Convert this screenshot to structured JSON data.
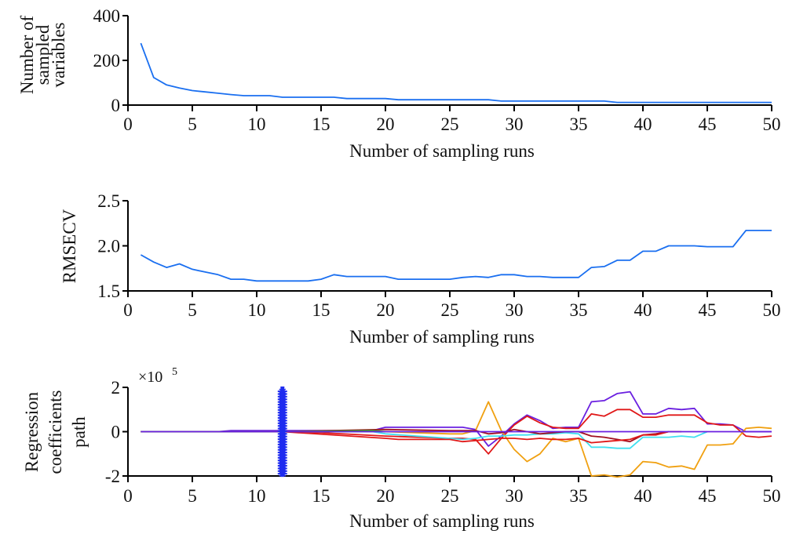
{
  "chart_data": [
    {
      "type": "line",
      "id": "sampled-variables",
      "title": "",
      "xlabel": "Number of sampling runs",
      "ylabel": [
        "Number of",
        "sampled",
        "variables"
      ],
      "xlim": [
        0,
        50
      ],
      "ylim": [
        0,
        400
      ],
      "xticks": [
        0,
        5,
        10,
        15,
        20,
        25,
        30,
        35,
        40,
        45,
        50
      ],
      "yticks": [
        0,
        200,
        400
      ],
      "grid": false,
      "series": [
        {
          "name": "Number of sampled variables",
          "color": "#1a6ff0",
          "x": [
            1,
            2,
            3,
            4,
            5,
            6,
            7,
            8,
            9,
            10,
            11,
            12,
            13,
            14,
            15,
            16,
            17,
            18,
            19,
            20,
            21,
            22,
            23,
            24,
            25,
            26,
            27,
            28,
            29,
            30,
            31,
            32,
            33,
            34,
            35,
            36,
            37,
            38,
            39,
            40,
            41,
            42,
            43,
            44,
            45,
            46,
            47,
            48,
            49,
            50
          ],
          "values": [
            277,
            123,
            90,
            76,
            65,
            59,
            53,
            47,
            42,
            42,
            42,
            35,
            35,
            35,
            35,
            35,
            29,
            29,
            29,
            29,
            24,
            24,
            24,
            24,
            24,
            24,
            24,
            24,
            18,
            18,
            18,
            18,
            18,
            18,
            18,
            18,
            18,
            12,
            12,
            12,
            12,
            12,
            12,
            12,
            12,
            12,
            12,
            12,
            12,
            12
          ]
        }
      ]
    },
    {
      "type": "line",
      "id": "rmsecv",
      "title": "",
      "xlabel": "Number of sampling runs",
      "ylabel": [
        "RMSECV"
      ],
      "xlim": [
        0,
        50
      ],
      "ylim": [
        1.5,
        2.5
      ],
      "xticks": [
        0,
        5,
        10,
        15,
        20,
        25,
        30,
        35,
        40,
        45,
        50
      ],
      "yticks": [
        1.5,
        2.0,
        2.5
      ],
      "ytick_labels": [
        "1.5",
        "2.0",
        "2.5"
      ],
      "grid": false,
      "series": [
        {
          "name": "RMSECV",
          "color": "#1a6ff0",
          "x": [
            1,
            2,
            3,
            4,
            5,
            6,
            7,
            8,
            9,
            10,
            11,
            12,
            13,
            14,
            15,
            16,
            17,
            18,
            19,
            20,
            21,
            22,
            23,
            24,
            25,
            26,
            27,
            28,
            29,
            30,
            31,
            32,
            33,
            34,
            35,
            36,
            37,
            38,
            39,
            40,
            41,
            42,
            43,
            44,
            45,
            46,
            47,
            48,
            49,
            50
          ],
          "values": [
            1.9,
            1.82,
            1.76,
            1.8,
            1.74,
            1.71,
            1.68,
            1.63,
            1.63,
            1.61,
            1.61,
            1.61,
            1.61,
            1.61,
            1.63,
            1.68,
            1.66,
            1.66,
            1.66,
            1.66,
            1.63,
            1.63,
            1.63,
            1.63,
            1.63,
            1.65,
            1.66,
            1.65,
            1.68,
            1.68,
            1.66,
            1.66,
            1.65,
            1.65,
            1.65,
            1.76,
            1.77,
            1.84,
            1.84,
            1.94,
            1.94,
            2.0,
            2.0,
            2.0,
            1.99,
            1.99,
            1.99,
            2.17,
            2.17,
            2.17
          ]
        }
      ]
    },
    {
      "type": "line",
      "id": "regression-coefficients",
      "title": "",
      "xlabel": "Number of sampling runs",
      "ylabel": [
        "Regression",
        "coefficients",
        "path"
      ],
      "multiplier_label": "×10",
      "multiplier_exponent": "5",
      "xlim": [
        0,
        50
      ],
      "ylim": [
        -2,
        2
      ],
      "xticks": [
        0,
        5,
        10,
        15,
        20,
        25,
        30,
        35,
        40,
        45,
        50
      ],
      "yticks": [
        -2,
        0,
        2
      ],
      "grid": false,
      "optimal_run_marker": {
        "x": 12,
        "ylim": [
          -1.9,
          1.9
        ],
        "color": "#1f2cf0",
        "marker": "asterisk"
      },
      "series": [
        {
          "name": "coef-purple-a",
          "color": "#6a1fe0",
          "x": [
            1,
            7,
            8,
            12,
            19,
            20,
            26,
            27,
            28,
            29,
            30,
            31,
            32,
            33,
            34,
            35,
            36,
            37,
            38,
            39,
            40,
            41,
            42,
            43,
            44,
            45,
            46,
            47,
            48,
            50
          ],
          "values": [
            0,
            0,
            0.05,
            0.05,
            0.05,
            0.2,
            0.2,
            0.1,
            -0.65,
            -0.2,
            0.35,
            0.75,
            0.5,
            0.15,
            0.2,
            0.2,
            1.35,
            1.4,
            1.72,
            1.8,
            0.8,
            0.8,
            1.05,
            1.0,
            1.05,
            0.35,
            0.35,
            0.3,
            0,
            0
          ]
        },
        {
          "name": "coef-red-a",
          "color": "#e01818",
          "x": [
            1,
            12,
            15,
            20,
            25,
            26,
            27,
            28,
            29,
            30,
            31,
            32,
            33,
            34,
            35,
            36,
            37,
            38,
            39,
            40,
            41,
            42,
            43,
            44,
            45,
            46,
            47,
            48,
            49,
            50
          ],
          "values": [
            0,
            0,
            -0.05,
            -0.2,
            -0.3,
            -0.3,
            -0.35,
            -1.0,
            -0.3,
            0.3,
            0.7,
            0.4,
            0.2,
            0.15,
            0.15,
            0.8,
            0.7,
            1.0,
            1.0,
            0.65,
            0.65,
            0.75,
            0.75,
            0.75,
            0.4,
            0.3,
            0.3,
            -0.2,
            -0.25,
            -0.2
          ]
        },
        {
          "name": "coef-orange",
          "color": "#f0a010",
          "x": [
            1,
            12,
            20,
            25,
            26,
            27,
            28,
            29,
            30,
            31,
            32,
            33,
            34,
            35,
            36,
            37,
            38,
            39,
            40,
            41,
            42,
            43,
            44,
            45,
            46,
            47,
            48,
            49,
            50
          ],
          "values": [
            0,
            0,
            0,
            -0.1,
            -0.1,
            0.05,
            1.35,
            0.05,
            -0.8,
            -1.35,
            -1.0,
            -0.3,
            -0.45,
            -0.3,
            -2.0,
            -1.95,
            -2.4,
            -1.95,
            -1.35,
            -1.4,
            -1.6,
            -1.55,
            -1.7,
            -0.6,
            -0.6,
            -0.55,
            0.15,
            0.2,
            0.15
          ]
        },
        {
          "name": "coef-cyan",
          "color": "#40e0f0",
          "x": [
            1,
            12,
            19,
            20,
            25,
            26,
            27,
            28,
            29,
            30,
            31,
            32,
            33,
            34,
            35,
            36,
            37,
            38,
            39,
            40,
            41,
            42,
            43,
            44,
            45
          ],
          "values": [
            0,
            0,
            0,
            -0.1,
            -0.3,
            -0.35,
            -0.3,
            -0.2,
            -0.2,
            -0.15,
            -0.15,
            -0.1,
            -0.1,
            -0.05,
            -0.1,
            -0.7,
            -0.7,
            -0.75,
            -0.75,
            -0.25,
            -0.25,
            -0.25,
            -0.2,
            -0.25,
            0
          ]
        },
        {
          "name": "coef-darkred",
          "color": "#a01020",
          "x": [
            1,
            12,
            20,
            25,
            27,
            28,
            29,
            30,
            31,
            32,
            33,
            34,
            35,
            36,
            37,
            38,
            39,
            40,
            41,
            42
          ],
          "values": [
            0,
            0,
            0.1,
            0.05,
            0.05,
            -0.1,
            -0.05,
            0.1,
            0,
            -0.1,
            -0.05,
            0,
            0,
            -0.2,
            -0.25,
            -0.35,
            -0.45,
            -0.15,
            -0.1,
            0
          ]
        },
        {
          "name": "coef-red-b",
          "color": "#e01818",
          "x": [
            1,
            12,
            20,
            21,
            25,
            26,
            27,
            28,
            29,
            30,
            31,
            32,
            33,
            34,
            35,
            36,
            37,
            38,
            39,
            40,
            41,
            42,
            43
          ],
          "values": [
            0,
            0,
            -0.3,
            -0.35,
            -0.35,
            -0.45,
            -0.4,
            -0.35,
            -0.3,
            -0.3,
            -0.35,
            -0.3,
            -0.35,
            -0.35,
            -0.3,
            -0.5,
            -0.45,
            -0.4,
            -0.35,
            -0.15,
            -0.15,
            0,
            0
          ]
        },
        {
          "name": "coef-green",
          "color": "#30b020",
          "x": [
            1,
            12,
            19,
            20
          ],
          "values": [
            0,
            0,
            0.05,
            0
          ]
        },
        {
          "name": "coef-purple-b",
          "color": "#6a1fe0",
          "x": [
            1,
            50
          ],
          "values": [
            0,
            0
          ]
        }
      ]
    }
  ]
}
